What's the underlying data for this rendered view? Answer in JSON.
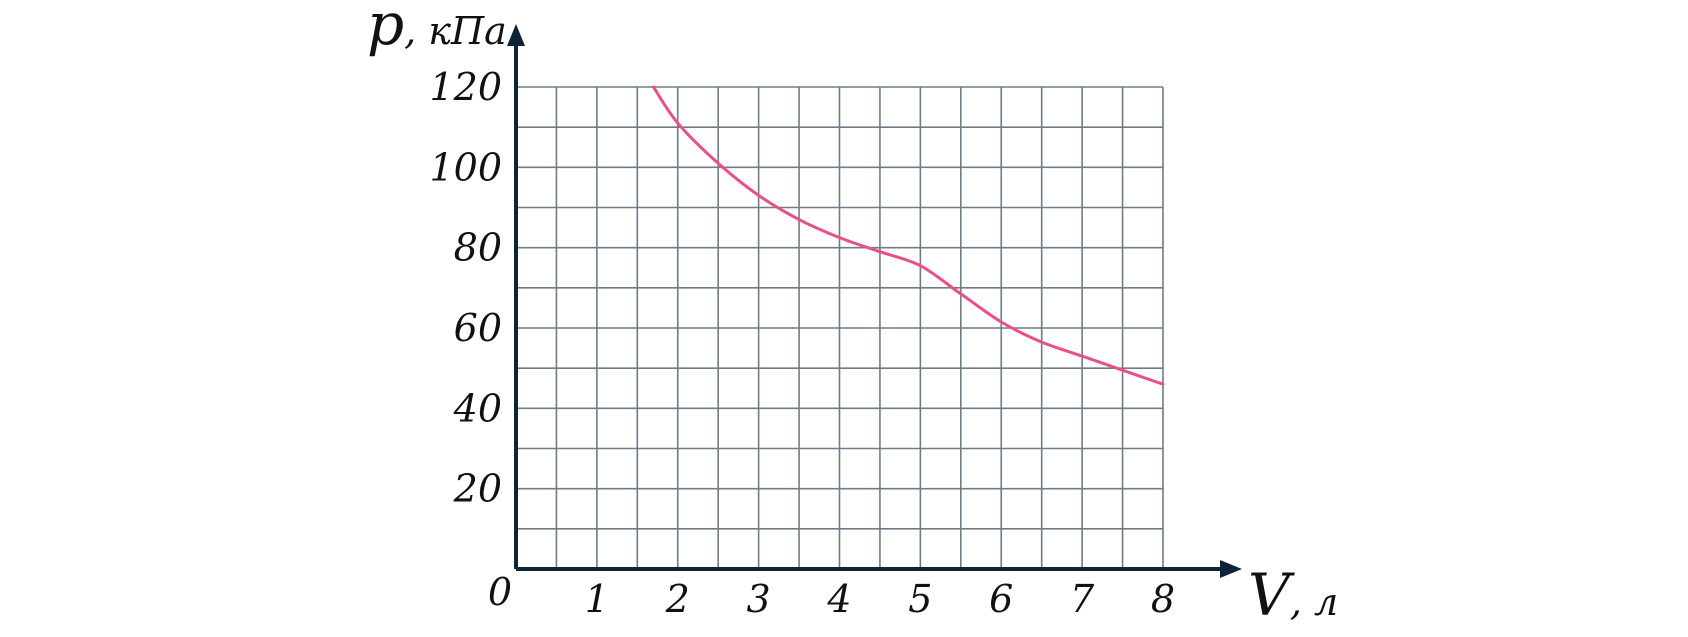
{
  "chart_data": {
    "type": "line",
    "xlabel": {
      "symbol": "V",
      "unit": ", л"
    },
    "ylabel": {
      "symbol": "p",
      "unit": ", кПа"
    },
    "origin_label": "0",
    "xlim": [
      0,
      8
    ],
    "ylim": [
      0,
      120
    ],
    "x_ticks": [
      "1",
      "2",
      "3",
      "4",
      "5",
      "6",
      "7",
      "8"
    ],
    "y_ticks": [
      "20",
      "40",
      "60",
      "80",
      "100",
      "120"
    ],
    "grid": true,
    "series": [
      {
        "color": "#e8508a",
        "x": [
          1.7,
          2.0,
          2.5,
          3.0,
          3.5,
          4.0,
          4.5,
          5.0,
          5.5,
          6.0,
          6.5,
          7.0,
          7.5,
          8.0
        ],
        "y": [
          120,
          111,
          101,
          93,
          87,
          82.5,
          79,
          75.5,
          68.5,
          61.5,
          56.5,
          53,
          49.5,
          46
        ]
      }
    ],
    "colors": {
      "axis": "#0f2336",
      "grid": "#6f7c88",
      "text": "#111111"
    }
  }
}
